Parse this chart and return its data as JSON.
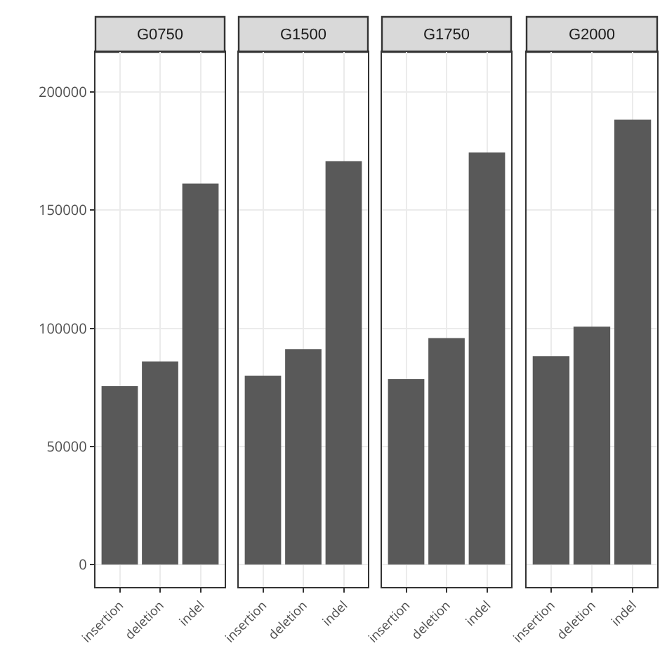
{
  "chart_data": [
    {
      "type": "bar",
      "title": "G0750",
      "categories": [
        "insertion",
        "deletion",
        "indel"
      ],
      "values": [
        75500,
        86000,
        161300
      ],
      "color": "#595959",
      "ylim": [
        -9500,
        217000
      ],
      "yticks": [
        0,
        50000,
        100000,
        150000,
        200000
      ],
      "grid": true
    },
    {
      "type": "bar",
      "title": "G1500",
      "categories": [
        "insertion",
        "deletion",
        "indel"
      ],
      "values": [
        80000,
        91200,
        170800
      ],
      "color": "#595959",
      "ylim": [
        -9500,
        217000
      ],
      "yticks": [
        0,
        50000,
        100000,
        150000,
        200000
      ],
      "grid": true,
      "tick_labels": "x"
    },
    {
      "type": "bar",
      "title": "G1750",
      "categories": [
        "insertion",
        "deletion",
        "indel"
      ],
      "values": [
        78500,
        95900,
        174400
      ],
      "color": "#595959",
      "ylim": [
        -9500,
        217000
      ],
      "yticks": [
        0,
        50000,
        100000,
        150000,
        200000
      ],
      "grid": true,
      "tick_labels": "x"
    },
    {
      "type": "bar",
      "title": "G2000",
      "categories": [
        "insertion",
        "deletion",
        "indel"
      ],
      "values": [
        88200,
        100700,
        188300
      ],
      "color": "#595959",
      "ylim": [
        -9500,
        217000
      ],
      "yticks": [
        0,
        50000,
        100000,
        150000,
        200000
      ],
      "grid": true,
      "tick_labels": "x"
    }
  ]
}
